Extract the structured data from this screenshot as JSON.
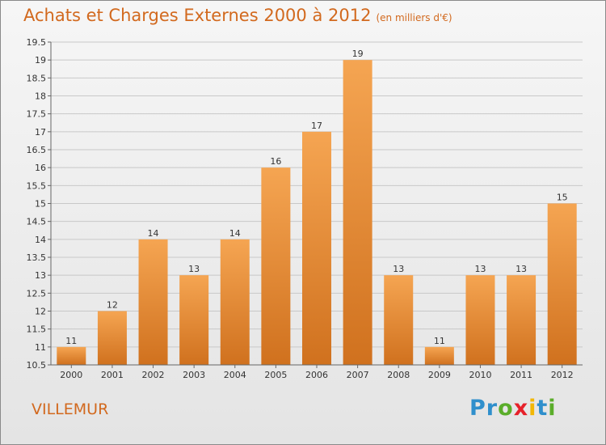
{
  "title": "Achats et Charges Externes 2000 à 2012",
  "subtitle": "(en milliers d'€)",
  "location": "VILLEMUR",
  "logo": "Proxiti",
  "colors": {
    "bar_top": "#f5a552",
    "bar_bottom": "#d0711e",
    "accent": "#d2691e",
    "grid": "#c8c8c8"
  },
  "chart_data": {
    "type": "bar",
    "categories": [
      "2000",
      "2001",
      "2002",
      "2003",
      "2004",
      "2005",
      "2006",
      "2007",
      "2008",
      "2009",
      "2010",
      "2011",
      "2012"
    ],
    "values": [
      11,
      12,
      14,
      13,
      14,
      16,
      17,
      19,
      13,
      11,
      13,
      13,
      15
    ],
    "value_labels": [
      "11",
      "12",
      "14",
      "13",
      "14",
      "16",
      "17",
      "19",
      "13",
      "11",
      "13",
      "13",
      "15"
    ],
    "ylim": [
      10.5,
      19.5
    ],
    "yticks": [
      10.5,
      11,
      11.5,
      12,
      12.5,
      13,
      13.5,
      14,
      14.5,
      15,
      15.5,
      16,
      16.5,
      17,
      17.5,
      18,
      18.5,
      19,
      19.5
    ],
    "ytick_labels": [
      "10.5",
      "11",
      "11.5",
      "12",
      "12.5",
      "13",
      "13.5",
      "14",
      "14.5",
      "15",
      "15.5",
      "16",
      "16.5",
      "17",
      "17.5",
      "18",
      "18.5",
      "19",
      "19.5"
    ],
    "grid": true,
    "xlabel": "",
    "ylabel": ""
  }
}
